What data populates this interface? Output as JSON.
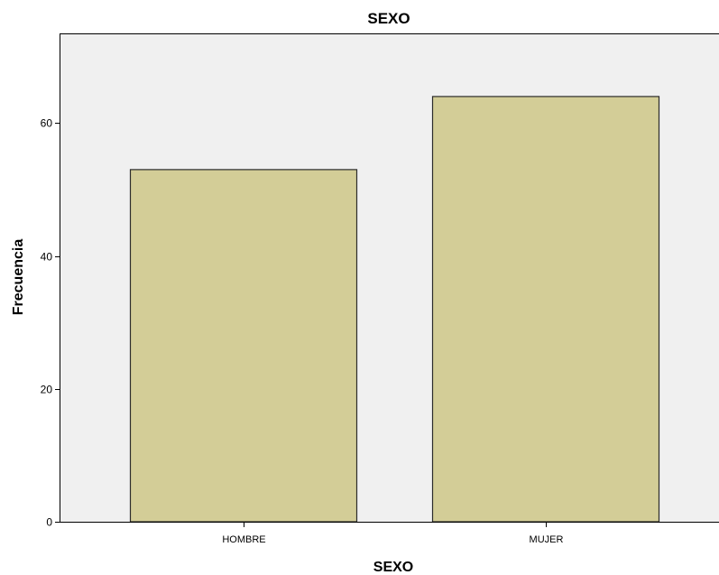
{
  "chart_data": {
    "type": "bar",
    "title": "SEXO",
    "xlabel": "SEXO",
    "ylabel": "Frecuencia",
    "categories": [
      "HOMBRE",
      "MUJER"
    ],
    "values": [
      53,
      64
    ],
    "ylim": [
      0,
      73.5
    ],
    "yticks": [
      0,
      20,
      40,
      60
    ],
    "grid": false,
    "legend": "none",
    "colors": {
      "bar_fill": "#d3cd97",
      "bar_stroke": "#2b2b2b",
      "plot_background": "#f0f0f0",
      "axis": "#000000"
    }
  }
}
